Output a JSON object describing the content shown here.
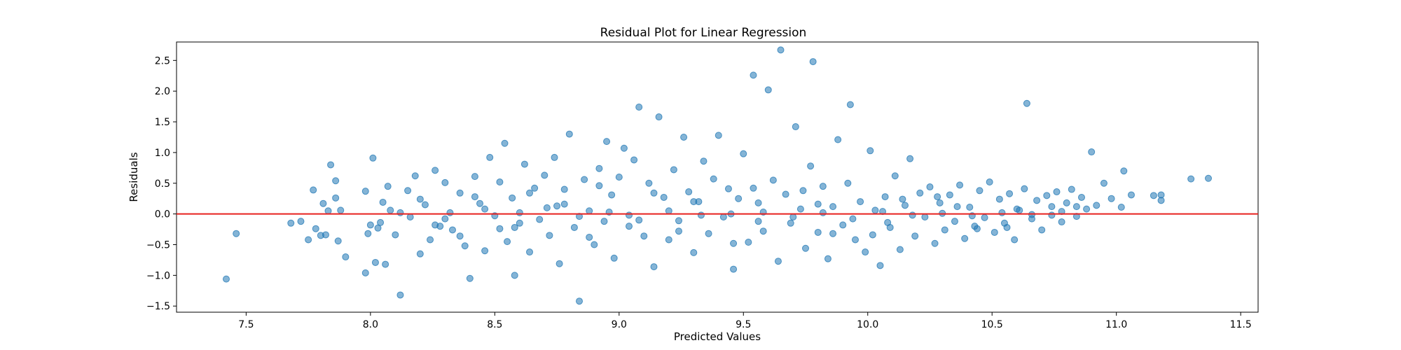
{
  "chart_data": {
    "type": "scatter",
    "title": "Residual Plot for Linear Regression",
    "xlabel": "Predicted Values",
    "ylabel": "Residuals",
    "xlim": [
      7.22,
      11.57
    ],
    "ylim": [
      -1.6,
      2.8
    ],
    "x_ticks": [
      "7.5",
      "8.0",
      "8.5",
      "9.0",
      "9.5",
      "10.0",
      "10.5",
      "11.0",
      "11.5"
    ],
    "y_ticks": [
      "−1.5",
      "−1.0",
      "−0.5",
      "0.0",
      "0.5",
      "1.0",
      "1.5",
      "2.0",
      "2.5"
    ],
    "reference_line": {
      "y": 0.0,
      "color": "#e8211f"
    },
    "marker_color": "#1f77b4",
    "marker_alpha": 0.55,
    "grid": false,
    "series": [
      {
        "points": [
          [
            7.42,
            -1.06
          ],
          [
            7.46,
            -0.32
          ],
          [
            7.68,
            -0.15
          ],
          [
            7.72,
            -0.12
          ],
          [
            7.75,
            -0.42
          ],
          [
            7.77,
            0.39
          ],
          [
            7.78,
            -0.24
          ],
          [
            7.8,
            -0.35
          ],
          [
            7.81,
            0.17
          ],
          [
            7.82,
            -0.34
          ],
          [
            7.83,
            0.05
          ],
          [
            7.84,
            0.8
          ],
          [
            7.86,
            0.54
          ],
          [
            7.86,
            0.26
          ],
          [
            7.87,
            -0.44
          ],
          [
            7.88,
            0.06
          ],
          [
            7.9,
            -0.7
          ],
          [
            7.98,
            -0.96
          ],
          [
            7.98,
            0.37
          ],
          [
            7.99,
            -0.32
          ],
          [
            8.0,
            -0.18
          ],
          [
            8.01,
            0.91
          ],
          [
            8.02,
            -0.79
          ],
          [
            8.03,
            -0.23
          ],
          [
            8.04,
            -0.14
          ],
          [
            8.05,
            0.19
          ],
          [
            8.06,
            -0.82
          ],
          [
            8.07,
            0.45
          ],
          [
            8.08,
            0.06
          ],
          [
            8.1,
            -0.34
          ],
          [
            8.12,
            -1.32
          ],
          [
            8.15,
            0.38
          ],
          [
            8.16,
            -0.05
          ],
          [
            8.18,
            0.62
          ],
          [
            8.2,
            -0.65
          ],
          [
            8.22,
            0.15
          ],
          [
            8.24,
            -0.42
          ],
          [
            8.26,
            0.71
          ],
          [
            8.28,
            -0.2
          ],
          [
            8.3,
            0.51
          ],
          [
            8.32,
            0.02
          ],
          [
            8.33,
            -0.26
          ],
          [
            8.36,
            0.34
          ],
          [
            8.38,
            -0.52
          ],
          [
            8.4,
            -1.05
          ],
          [
            8.42,
            0.61
          ],
          [
            8.44,
            0.17
          ],
          [
            8.46,
            -0.6
          ],
          [
            8.48,
            0.92
          ],
          [
            8.5,
            -0.03
          ],
          [
            8.52,
            0.52
          ],
          [
            8.54,
            1.15
          ],
          [
            8.55,
            -0.45
          ],
          [
            8.57,
            0.26
          ],
          [
            8.58,
            -1.0
          ],
          [
            8.6,
            -0.15
          ],
          [
            8.62,
            0.81
          ],
          [
            8.64,
            -0.62
          ],
          [
            8.66,
            0.42
          ],
          [
            8.68,
            -0.09
          ],
          [
            8.7,
            0.63
          ],
          [
            8.72,
            -0.35
          ],
          [
            8.74,
            0.92
          ],
          [
            8.75,
            0.13
          ],
          [
            8.76,
            -0.81
          ],
          [
            8.78,
            0.4
          ],
          [
            8.8,
            1.3
          ],
          [
            8.82,
            -0.22
          ],
          [
            8.84,
            -1.42
          ],
          [
            8.86,
            0.56
          ],
          [
            8.88,
            0.05
          ],
          [
            8.9,
            -0.5
          ],
          [
            8.92,
            0.74
          ],
          [
            8.94,
            -0.12
          ],
          [
            8.95,
            1.18
          ],
          [
            8.97,
            0.31
          ],
          [
            8.98,
            -0.72
          ],
          [
            9.0,
            0.6
          ],
          [
            9.02,
            1.07
          ],
          [
            9.04,
            -0.02
          ],
          [
            9.06,
            0.88
          ],
          [
            9.08,
            1.74
          ],
          [
            9.1,
            -0.36
          ],
          [
            9.12,
            0.5
          ],
          [
            9.14,
            -0.86
          ],
          [
            9.16,
            1.58
          ],
          [
            9.18,
            0.27
          ],
          [
            9.2,
            -0.42
          ],
          [
            9.22,
            0.72
          ],
          [
            9.24,
            -0.11
          ],
          [
            9.26,
            1.25
          ],
          [
            9.28,
            0.36
          ],
          [
            9.3,
            -0.63
          ],
          [
            9.32,
            0.2
          ],
          [
            9.34,
            0.86
          ],
          [
            9.36,
            -0.32
          ],
          [
            9.38,
            0.57
          ],
          [
            9.4,
            1.28
          ],
          [
            9.42,
            -0.05
          ],
          [
            9.44,
            0.41
          ],
          [
            9.46,
            -0.9
          ],
          [
            9.48,
            0.25
          ],
          [
            9.5,
            0.98
          ],
          [
            9.52,
            -0.46
          ],
          [
            9.54,
            2.26
          ],
          [
            9.56,
            0.18
          ],
          [
            9.58,
            -0.28
          ],
          [
            9.6,
            2.02
          ],
          [
            9.62,
            0.55
          ],
          [
            9.64,
            -0.77
          ],
          [
            9.65,
            2.67
          ],
          [
            9.67,
            0.32
          ],
          [
            9.69,
            -0.15
          ],
          [
            9.71,
            1.42
          ],
          [
            9.73,
            0.08
          ],
          [
            9.75,
            -0.56
          ],
          [
            9.77,
            0.78
          ],
          [
            9.78,
            2.48
          ],
          [
            9.8,
            -0.3
          ],
          [
            9.82,
            0.45
          ],
          [
            9.84,
            -0.73
          ],
          [
            9.86,
            0.12
          ],
          [
            9.88,
            1.21
          ],
          [
            9.9,
            -0.18
          ],
          [
            9.92,
            0.5
          ],
          [
            9.93,
            1.78
          ],
          [
            9.95,
            -0.42
          ],
          [
            9.97,
            0.2
          ],
          [
            9.99,
            -0.62
          ],
          [
            10.01,
            1.03
          ],
          [
            10.03,
            0.06
          ],
          [
            10.05,
            -0.84
          ],
          [
            10.07,
            0.28
          ],
          [
            10.09,
            -0.22
          ],
          [
            10.11,
            0.62
          ],
          [
            10.13,
            -0.58
          ],
          [
            10.15,
            0.14
          ],
          [
            10.17,
            0.9
          ],
          [
            10.19,
            -0.36
          ],
          [
            10.21,
            0.34
          ],
          [
            10.23,
            -0.05
          ],
          [
            10.25,
            0.44
          ],
          [
            10.27,
            -0.48
          ],
          [
            10.29,
            0.18
          ],
          [
            10.31,
            -0.26
          ],
          [
            10.33,
            0.31
          ],
          [
            10.35,
            -0.12
          ],
          [
            10.37,
            0.47
          ],
          [
            10.39,
            -0.4
          ],
          [
            10.41,
            0.11
          ],
          [
            10.43,
            -0.2
          ],
          [
            10.45,
            0.38
          ],
          [
            10.47,
            -0.06
          ],
          [
            10.49,
            0.52
          ],
          [
            10.51,
            -0.3
          ],
          [
            10.53,
            0.24
          ],
          [
            10.55,
            -0.15
          ],
          [
            10.57,
            0.33
          ],
          [
            10.59,
            -0.42
          ],
          [
            10.61,
            0.06
          ],
          [
            10.63,
            0.41
          ],
          [
            10.64,
            1.8
          ],
          [
            10.66,
            -0.08
          ],
          [
            10.68,
            0.22
          ],
          [
            10.7,
            -0.26
          ],
          [
            10.72,
            0.3
          ],
          [
            10.74,
            -0.02
          ],
          [
            10.76,
            0.36
          ],
          [
            10.78,
            -0.13
          ],
          [
            10.8,
            0.18
          ],
          [
            10.82,
            0.4
          ],
          [
            10.84,
            -0.04
          ],
          [
            10.86,
            0.27
          ],
          [
            10.88,
            0.08
          ],
          [
            10.9,
            1.01
          ],
          [
            10.92,
            0.14
          ],
          [
            10.95,
            0.5
          ],
          [
            10.98,
            0.25
          ],
          [
            11.02,
            0.11
          ],
          [
            11.03,
            0.7
          ],
          [
            11.06,
            0.31
          ],
          [
            11.15,
            0.3
          ],
          [
            11.18,
            0.22
          ],
          [
            11.18,
            0.31
          ],
          [
            11.3,
            0.57
          ],
          [
            11.37,
            0.58
          ],
          [
            8.3,
            -0.08
          ],
          [
            8.46,
            0.08
          ],
          [
            8.6,
            0.02
          ],
          [
            8.71,
            0.1
          ],
          [
            8.84,
            -0.04
          ],
          [
            8.96,
            0.03
          ],
          [
            9.08,
            -0.1
          ],
          [
            9.2,
            0.05
          ],
          [
            9.33,
            -0.02
          ],
          [
            9.45,
            0.0
          ],
          [
            9.58,
            0.03
          ],
          [
            9.7,
            -0.05
          ],
          [
            9.82,
            0.02
          ],
          [
            9.94,
            -0.08
          ],
          [
            10.06,
            0.04
          ],
          [
            10.18,
            -0.02
          ],
          [
            10.3,
            0.01
          ],
          [
            10.42,
            -0.03
          ],
          [
            10.54,
            0.02
          ],
          [
            10.66,
            -0.01
          ],
          [
            10.78,
            0.04
          ],
          [
            8.2,
            0.24
          ],
          [
            8.52,
            -0.24
          ],
          [
            8.88,
            -0.38
          ],
          [
            9.14,
            0.34
          ],
          [
            9.46,
            -0.48
          ],
          [
            9.74,
            0.38
          ],
          [
            10.02,
            -0.34
          ],
          [
            10.28,
            0.28
          ],
          [
            10.56,
            -0.22
          ],
          [
            8.36,
            -0.36
          ],
          [
            8.64,
            0.34
          ],
          [
            8.92,
            0.46
          ],
          [
            9.24,
            -0.28
          ],
          [
            9.54,
            0.42
          ],
          [
            9.86,
            -0.32
          ],
          [
            10.14,
            0.24
          ],
          [
            10.44,
            -0.24
          ],
          [
            10.74,
            0.12
          ],
          [
            8.12,
            0.02
          ],
          [
            8.26,
            -0.18
          ],
          [
            8.42,
            0.28
          ],
          [
            8.58,
            -0.22
          ],
          [
            8.78,
            0.16
          ],
          [
            9.04,
            -0.2
          ],
          [
            9.3,
            0.2
          ],
          [
            9.56,
            -0.12
          ],
          [
            9.8,
            0.16
          ],
          [
            10.08,
            -0.14
          ],
          [
            10.36,
            0.12
          ],
          [
            10.6,
            0.08
          ],
          [
            10.84,
            0.12
          ]
        ]
      }
    ]
  }
}
